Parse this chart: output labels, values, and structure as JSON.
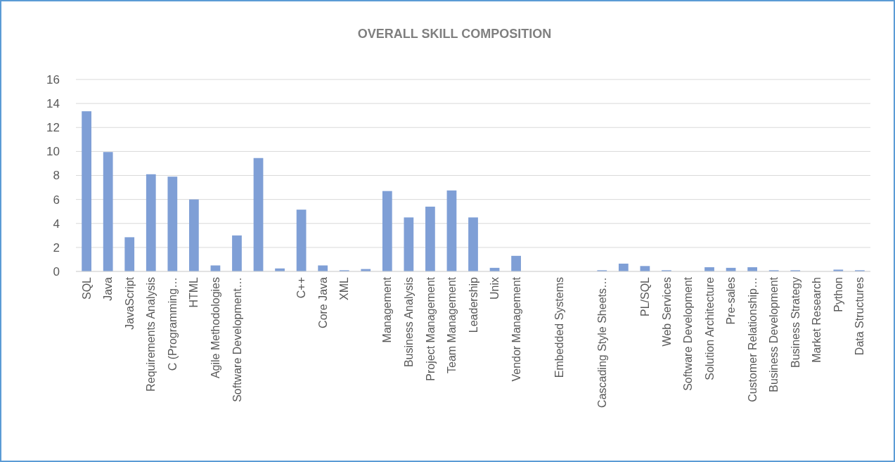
{
  "chart_data": {
    "type": "bar",
    "title": "OVERALL SKILL COMPOSITION",
    "categories": [
      "SQL",
      "Java",
      "JavaScript",
      "Requirements Analysis",
      "C (Programming…",
      "HTML",
      "Agile Methodologies",
      "Software Development…",
      null,
      null,
      "C++",
      "Core Java",
      "XML",
      null,
      "Management",
      "Business Analysis",
      "Project Management",
      "Team Management",
      "Leadership",
      "Unix",
      "Vendor Management",
      null,
      "Embedded Systems",
      null,
      "Cascading Style Sheets…",
      null,
      "PL/SQL",
      "Web Services",
      "Software Development",
      "Solution Architecture",
      "Pre-sales",
      "Customer Relationship…",
      "Business Development",
      "Business Strategy",
      "Market Research",
      "Python",
      "Data Structures"
    ],
    "values": [
      13.35,
      9.95,
      2.85,
      8.1,
      7.9,
      6.0,
      0.5,
      3.0,
      9.45,
      0.25,
      5.15,
      0.5,
      0.1,
      0.2,
      6.7,
      4.5,
      5.4,
      6.75,
      4.5,
      0.3,
      1.3,
      null,
      null,
      null,
      0.1,
      0.65,
      0.45,
      0.1,
      null,
      0.35,
      0.3,
      0.35,
      0.1,
      0.1,
      0,
      0.15,
      0.1
    ],
    "color": "#7f9fd6",
    "ylim": [
      0,
      16
    ],
    "yticks": [
      0,
      2,
      4,
      6,
      8,
      10,
      12,
      14,
      16
    ],
    "grid": "y"
  }
}
